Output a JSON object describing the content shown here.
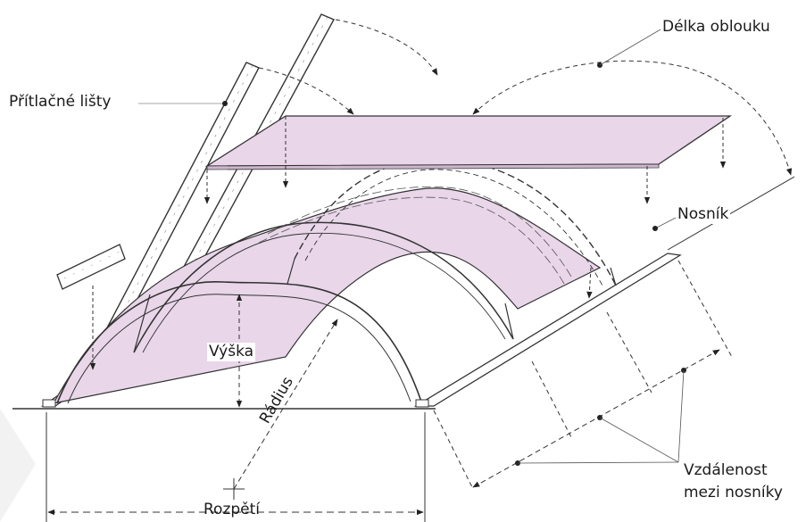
{
  "labels": {
    "arc_length": "Délka oblouku",
    "clamping_strips": "Přítlačné lišty",
    "beam": "Nosník",
    "height": "Výška",
    "radius": "Rádius",
    "span": "Rozpětí",
    "beam_spacing_line1": "Vzdálenost",
    "beam_spacing_line2": "mezi nosníky"
  },
  "colors": {
    "panel_fill": "#e9d6e9",
    "line": "#3a3a3a"
  }
}
